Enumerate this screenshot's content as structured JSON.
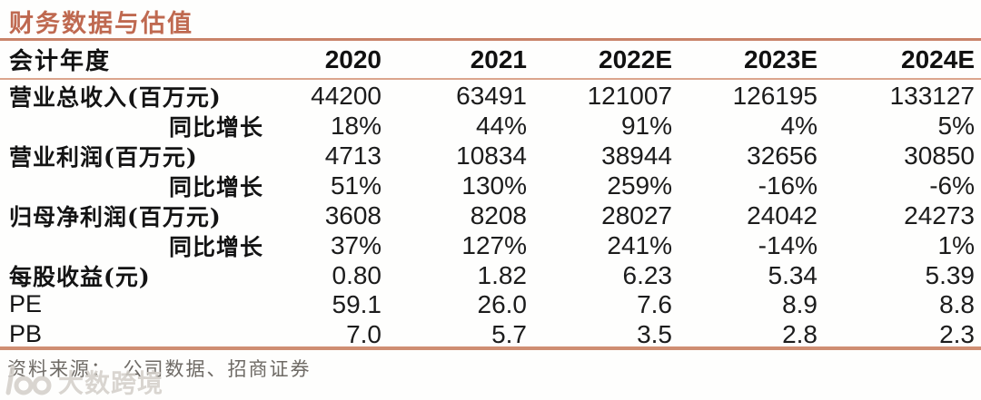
{
  "title": "财务数据与估值",
  "colors": {
    "accent_title": "#bf6950",
    "rule_top": "#c9836a",
    "rule_header": "#dba58d",
    "rule_bottom": "#cf8e72",
    "text": "#1c1c1c",
    "source_text": "#6e6a65",
    "watermark": "#d3cfc9"
  },
  "table": {
    "header": {
      "label": "会计年度",
      "years": [
        "2020",
        "2021",
        "2022E",
        "2023E",
        "2024E"
      ]
    },
    "rows": [
      {
        "label": "营业总收入(百万元)",
        "sub": false,
        "latin": false,
        "values": [
          "44200",
          "63491",
          "121007",
          "126195",
          "133127"
        ]
      },
      {
        "label": "同比增长",
        "sub": true,
        "latin": false,
        "values": [
          "18%",
          "44%",
          "91%",
          "4%",
          "5%"
        ]
      },
      {
        "label": "营业利润(百万元)",
        "sub": false,
        "latin": false,
        "values": [
          "4713",
          "10834",
          "38944",
          "32656",
          "30850"
        ]
      },
      {
        "label": "同比增长",
        "sub": true,
        "latin": false,
        "values": [
          "51%",
          "130%",
          "259%",
          "-16%",
          "-6%"
        ]
      },
      {
        "label": "归母净利润(百万元)",
        "sub": false,
        "latin": false,
        "values": [
          "3608",
          "8208",
          "28027",
          "24042",
          "24273"
        ]
      },
      {
        "label": "同比增长",
        "sub": true,
        "latin": false,
        "values": [
          "37%",
          "127%",
          "241%",
          "-14%",
          "1%"
        ]
      },
      {
        "label": "每股收益(元)",
        "sub": false,
        "latin": false,
        "values": [
          "0.80",
          "1.82",
          "6.23",
          "5.34",
          "5.39"
        ]
      },
      {
        "label": "PE",
        "sub": false,
        "latin": true,
        "values": [
          "59.1",
          "26.0",
          "7.6",
          "8.9",
          "8.8"
        ]
      },
      {
        "label": "PB",
        "sub": false,
        "latin": true,
        "values": [
          "7.0",
          "5.7",
          "3.5",
          "2.8",
          "2.3"
        ]
      }
    ]
  },
  "footer": {
    "source": "资料来源：　公司数据、招商证券"
  },
  "watermark": {
    "text": "大数跨境"
  }
}
